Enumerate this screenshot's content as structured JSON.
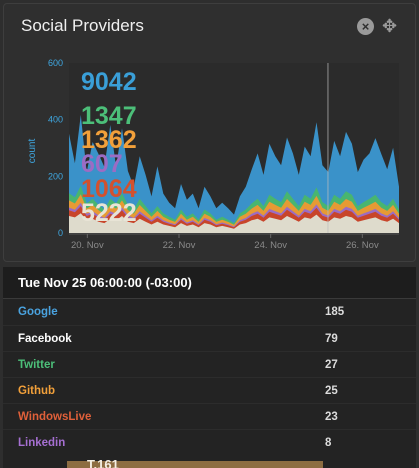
{
  "widget": {
    "title": "Social Providers"
  },
  "icons": {
    "close": "close-icon",
    "move": "move-icon"
  },
  "chart_data": {
    "type": "area",
    "stacked": true,
    "ylabel": "count",
    "ylim": [
      0,
      600
    ],
    "y_ticks": [
      "0",
      "200",
      "400",
      "600"
    ],
    "x_ticks": [
      "20. Nov",
      "22. Nov",
      "24. Nov",
      "26. Nov"
    ],
    "crosshair_label": "Tue Nov 25 06:00:00 (-03:00)",
    "totals": [
      {
        "name": "Google",
        "total": "9042",
        "color": "#3a9fd8"
      },
      {
        "name": "Twitter",
        "total": "1347",
        "color": "#4cbf79"
      },
      {
        "name": "Github",
        "total": "1362",
        "color": "#f2a03a"
      },
      {
        "name": "Linkedin",
        "total": "607",
        "color": "#9b6cc4"
      },
      {
        "name": "WindowsLive",
        "total": "1064",
        "color": "#d3512e"
      },
      {
        "name": "Facebook",
        "total": "5222",
        "color": "#e8e4d6"
      }
    ],
    "series": [
      {
        "name": "Facebook",
        "color": "#dedbcc",
        "values": [
          60,
          55,
          70,
          45,
          50,
          40,
          35,
          50,
          45,
          60,
          40,
          35,
          50,
          40,
          30,
          40,
          30,
          25,
          20,
          35,
          25,
          30,
          20,
          35,
          30,
          20,
          25,
          20,
          15,
          30,
          35,
          45,
          50,
          40,
          55,
          50,
          45,
          60,
          50,
          40,
          55,
          50,
          65,
          45,
          40,
          55,
          50,
          60,
          55,
          40,
          45,
          50,
          55,
          45,
          40,
          50,
          35
        ]
      },
      {
        "name": "WindowsLive",
        "color": "#c8452a",
        "values": [
          20,
          18,
          25,
          15,
          18,
          15,
          12,
          18,
          15,
          20,
          15,
          12,
          18,
          14,
          10,
          14,
          10,
          8,
          7,
          12,
          8,
          10,
          7,
          12,
          10,
          7,
          8,
          7,
          5,
          10,
          12,
          15,
          18,
          14,
          20,
          18,
          16,
          22,
          18,
          14,
          20,
          18,
          24,
          16,
          14,
          20,
          18,
          22,
          20,
          14,
          16,
          18,
          20,
          16,
          14,
          18,
          12
        ]
      },
      {
        "name": "Linkedin",
        "color": "#9b6cc4",
        "values": [
          10,
          9,
          12,
          8,
          9,
          8,
          6,
          9,
          8,
          10,
          8,
          6,
          9,
          7,
          5,
          7,
          5,
          4,
          4,
          6,
          4,
          5,
          4,
          6,
          5,
          4,
          4,
          4,
          3,
          5,
          6,
          8,
          9,
          7,
          10,
          9,
          8,
          11,
          9,
          7,
          10,
          9,
          12,
          8,
          7,
          10,
          9,
          11,
          10,
          7,
          8,
          9,
          10,
          8,
          7,
          9,
          6
        ]
      },
      {
        "name": "Github",
        "color": "#e69a34",
        "values": [
          25,
          22,
          30,
          18,
          22,
          18,
          15,
          22,
          18,
          25,
          18,
          15,
          22,
          17,
          12,
          17,
          12,
          10,
          8,
          15,
          10,
          12,
          8,
          15,
          12,
          8,
          10,
          8,
          6,
          12,
          15,
          18,
          22,
          17,
          25,
          22,
          20,
          27,
          22,
          17,
          25,
          22,
          30,
          20,
          17,
          25,
          22,
          27,
          25,
          17,
          20,
          22,
          25,
          20,
          17,
          22,
          15
        ]
      },
      {
        "name": "Twitter",
        "color": "#48b570",
        "values": [
          25,
          22,
          30,
          18,
          22,
          18,
          15,
          22,
          18,
          25,
          18,
          15,
          22,
          17,
          12,
          17,
          12,
          10,
          8,
          15,
          10,
          12,
          8,
          15,
          12,
          8,
          10,
          8,
          6,
          12,
          15,
          18,
          22,
          17,
          25,
          22,
          20,
          27,
          22,
          17,
          25,
          22,
          30,
          20,
          17,
          25,
          22,
          27,
          25,
          17,
          20,
          22,
          25,
          20,
          17,
          22,
          15
        ]
      },
      {
        "name": "Google",
        "color": "#3a92c9",
        "values": [
          210,
          120,
          250,
          110,
          200,
          180,
          150,
          260,
          130,
          230,
          120,
          80,
          150,
          110,
          60,
          140,
          70,
          50,
          40,
          90,
          60,
          70,
          40,
          80,
          60,
          40,
          50,
          40,
          30,
          60,
          80,
          120,
          160,
          110,
          180,
          150,
          130,
          190,
          160,
          110,
          170,
          150,
          230,
          130,
          120,
          190,
          150,
          210,
          180,
          120,
          150,
          160,
          200,
          170,
          130,
          180,
          80
        ]
      }
    ]
  },
  "details": {
    "header": "Tue Nov 25 06:00:00 (-03:00)",
    "rows": [
      {
        "name": "Google",
        "count": "185",
        "color": "#4aa3e0"
      },
      {
        "name": "Facebook",
        "count": "79",
        "color": "#ffffff"
      },
      {
        "name": "Twitter",
        "count": "27",
        "color": "#4cbf79"
      },
      {
        "name": "Github",
        "count": "25",
        "color": "#f2a03a"
      },
      {
        "name": "WindowsLive",
        "count": "23",
        "color": "#e0603a"
      },
      {
        "name": "Linkedin",
        "count": "8",
        "color": "#a56fd1"
      }
    ]
  },
  "bottom_peek": {
    "text": "T.161"
  }
}
